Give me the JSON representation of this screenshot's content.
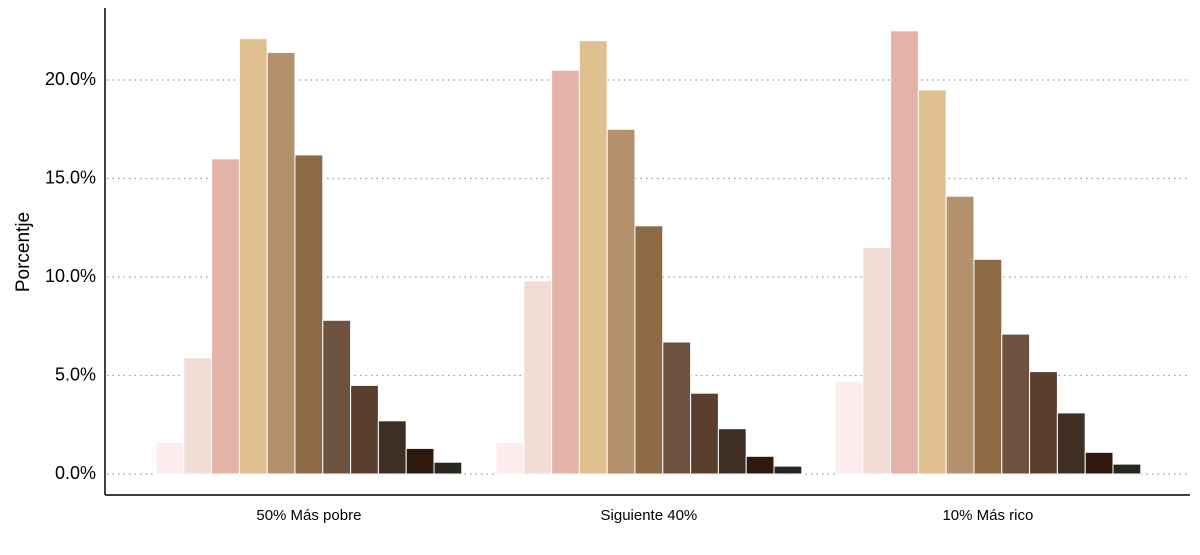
{
  "chart_data": {
    "type": "bar",
    "ylabel": "Porcentje",
    "xlabel": "",
    "ylim": [
      0,
      23.5
    ],
    "y_ticks": [
      0,
      5,
      10,
      15,
      20
    ],
    "y_tick_labels": [
      "0.0%",
      "5.0%",
      "10.0%",
      "15.0%",
      "20.0%"
    ],
    "grid": "horizontal-dotted",
    "legend": "none",
    "categories": [
      "50% Más pobre",
      "Siguiente 40%",
      "10% Más rico"
    ],
    "series_colors": [
      "#fdecee",
      "#f2dcd6",
      "#e3b3a8",
      "#e1c090",
      "#b3916c",
      "#8b6a45",
      "#6e5240",
      "#5a3f2f",
      "#3e2e24",
      "#2e1b0d",
      "#2a2622"
    ],
    "series": [
      {
        "values": [
          1.6,
          1.6,
          4.7
        ]
      },
      {
        "values": [
          5.9,
          9.8,
          11.5
        ]
      },
      {
        "values": [
          16.0,
          20.5,
          22.5
        ]
      },
      {
        "values": [
          22.1,
          22.0,
          19.5
        ]
      },
      {
        "values": [
          21.4,
          17.5,
          14.1
        ]
      },
      {
        "values": [
          16.2,
          12.6,
          10.9
        ]
      },
      {
        "values": [
          7.8,
          6.7,
          7.1
        ]
      },
      {
        "values": [
          4.5,
          4.1,
          5.2
        ]
      },
      {
        "values": [
          2.7,
          2.3,
          3.1
        ]
      },
      {
        "values": [
          1.3,
          0.9,
          1.1
        ]
      },
      {
        "values": [
          0.6,
          0.4,
          0.5
        ]
      }
    ]
  }
}
